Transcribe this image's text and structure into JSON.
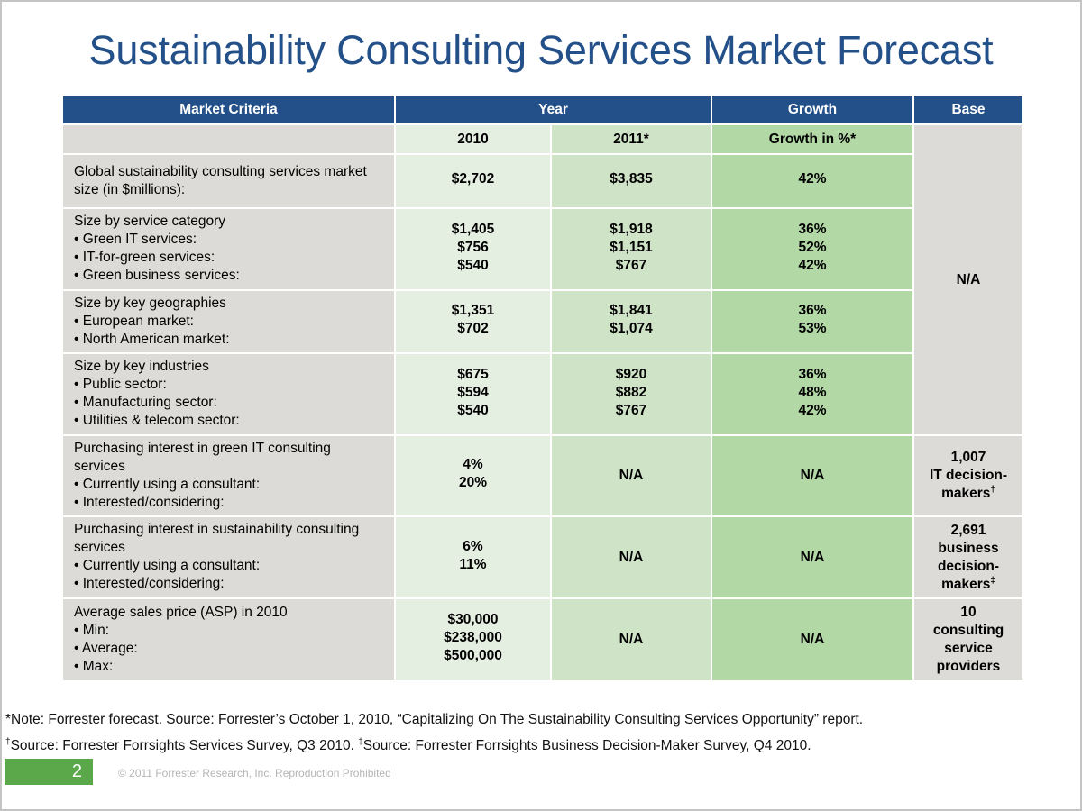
{
  "title": "Sustainability Consulting Services Market Forecast",
  "table": {
    "headers": {
      "market_criteria": "Market Criteria",
      "year": "Year",
      "growth": "Growth",
      "base": "Base"
    },
    "subheaders": {
      "y2010": "2010",
      "y2011": "2011*",
      "growth_pct": "Growth in %*"
    },
    "rows": [
      {
        "criteria": [
          "Global sustainability consulting services market size (in $millions):"
        ],
        "y2010": [
          "$2,702"
        ],
        "y2011": [
          "$3,835"
        ],
        "growth": [
          "42%"
        ]
      },
      {
        "criteria": [
          "Size by service category",
          "• Green IT services:",
          "• IT-for-green services:",
          "• Green business services:"
        ],
        "y2010": [
          "$1,405",
          "$756",
          "$540"
        ],
        "y2011": [
          "$1,918",
          "$1,151",
          "$767"
        ],
        "growth": [
          "36%",
          "52%",
          "42%"
        ]
      },
      {
        "criteria": [
          "Size by key geographies",
          "• European market:",
          "• North American market:"
        ],
        "y2010": [
          "$1,351",
          "$702"
        ],
        "y2011": [
          "$1,841",
          "$1,074"
        ],
        "growth": [
          "36%",
          "53%"
        ]
      },
      {
        "criteria": [
          "Size by key industries",
          "• Public sector:",
          "• Manufacturing sector:",
          "• Utilities & telecom sector:"
        ],
        "y2010": [
          "$675",
          "$594",
          "$540"
        ],
        "y2011": [
          "$920",
          "$882",
          "$767"
        ],
        "growth": [
          "36%",
          "48%",
          "42%"
        ]
      },
      {
        "criteria": [
          "Purchasing interest in green IT consulting services",
          "• Currently using a consultant:",
          "• Interested/considering:"
        ],
        "y2010": [
          "4%",
          "20%"
        ],
        "y2011": [
          "N/A"
        ],
        "growth": [
          "N/A"
        ],
        "base": [
          "1,007",
          "IT decision-",
          "makers"
        ],
        "base_mark": "†"
      },
      {
        "criteria": [
          "Purchasing interest in sustainability consulting services",
          "• Currently using a consultant:",
          "• Interested/considering:"
        ],
        "y2010": [
          "6%",
          "11%"
        ],
        "y2011": [
          "N/A"
        ],
        "growth": [
          "N/A"
        ],
        "base": [
          "2,691",
          "business",
          "decision-",
          "makers"
        ],
        "base_mark": "‡"
      },
      {
        "criteria": [
          "Average sales price (ASP) in 2010",
          "• Min:",
          "• Average:",
          "• Max:"
        ],
        "y2010": [
          "$30,000",
          "$238,000",
          "$500,000"
        ],
        "y2011": [
          "N/A"
        ],
        "growth": [
          "N/A"
        ],
        "base": [
          "10",
          "consulting",
          "service",
          "providers"
        ]
      }
    ],
    "base_merged": "N/A"
  },
  "notes": {
    "line1": "*Note: Forrester forecast. Source: Forrester’s October 1, 2010, “Capitalizing On The Sustainability Consulting Services Opportunity” report.",
    "line2_mark1": "†",
    "line2_part1": "Source: Forrester Forrsights Services Survey, Q3 2010. ",
    "line2_mark2": "‡",
    "line2_part2": "Source: Forrester Forrsights Business Decision-Maker Survey, Q4 2010."
  },
  "footer": {
    "page_number": "2",
    "copyright": "© 2011 Forrester Research, Inc. Reproduction Prohibited"
  },
  "colors": {
    "title": "#235089",
    "header_bg": "#245089",
    "criteria_bg": "#dcdbd7",
    "col_2010_bg": "#e5efe1",
    "col_2011_bg": "#cfe3c7",
    "col_growth_bg": "#b2d8a5",
    "page_box": "#5aa84a"
  }
}
